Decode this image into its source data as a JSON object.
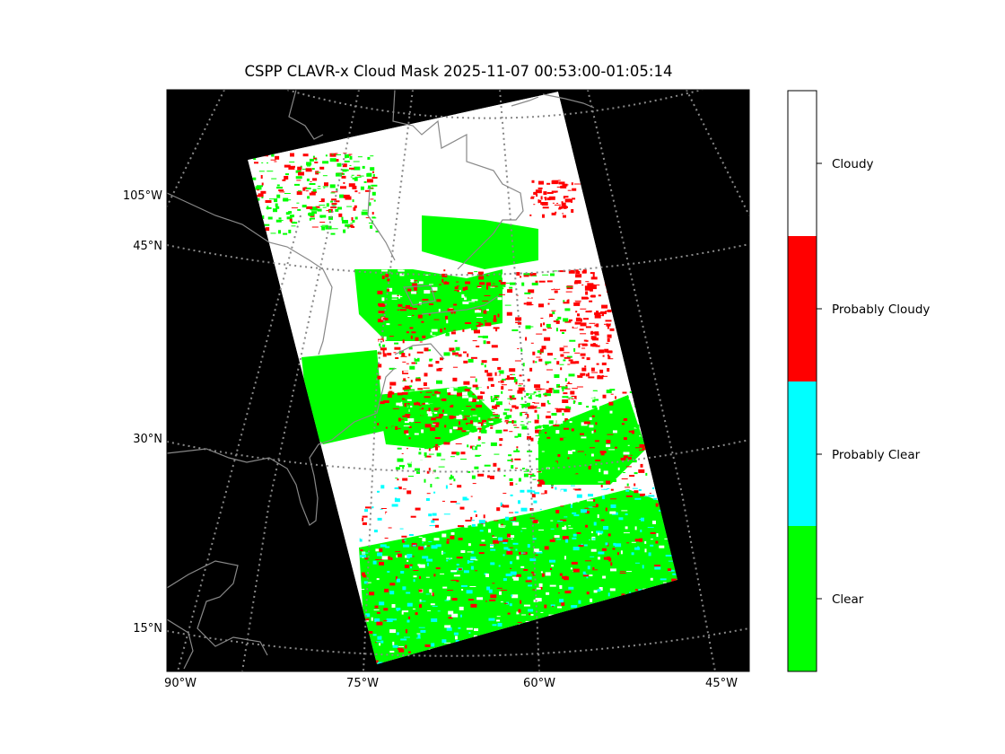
{
  "title": "CSPP CLAVR-x Cloud Mask 2025-11-07 00:53:00-01:05:14",
  "map": {
    "background_color": "#000000",
    "graticule_color": "#888888",
    "coastline_color": "#888888",
    "left_labels": [
      {
        "text": "105°W"
      },
      {
        "text": "45°N"
      },
      {
        "text": "30°N"
      },
      {
        "text": "15°N"
      }
    ],
    "bottom_labels": [
      {
        "text": "90°W"
      },
      {
        "text": "75°W"
      },
      {
        "text": "60°W"
      },
      {
        "text": "45°W"
      }
    ]
  },
  "legend": {
    "categories": [
      {
        "label": "Cloudy",
        "color": "#ffffff"
      },
      {
        "label": "Probably Cloudy",
        "color": "#ff0000"
      },
      {
        "label": "Probably Clear",
        "color": "#00ffff"
      },
      {
        "label": "Clear",
        "color": "#00ff00"
      }
    ]
  }
}
